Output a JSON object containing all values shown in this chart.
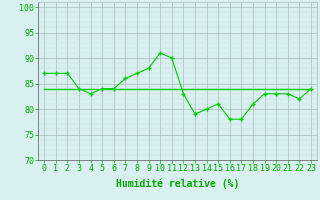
{
  "x": [
    0,
    1,
    2,
    3,
    4,
    5,
    6,
    7,
    8,
    9,
    10,
    11,
    12,
    13,
    14,
    15,
    16,
    17,
    18,
    19,
    20,
    21,
    22,
    23
  ],
  "y_main": [
    87,
    87,
    87,
    84,
    83,
    84,
    84,
    86,
    87,
    88,
    91,
    90,
    83,
    79,
    80,
    81,
    78,
    78,
    81,
    83,
    83,
    83,
    82,
    84
  ],
  "y_avg": [
    84,
    84,
    84,
    84,
    84,
    84,
    84,
    84,
    84,
    84,
    84,
    84,
    84,
    84,
    84,
    84,
    84,
    84,
    84,
    84,
    84,
    84,
    84,
    84
  ],
  "line_color": "#00cc00",
  "avg_color": "#00cc00",
  "bg_color": "#d8f0f0",
  "grid_color_minor": "#ccdddd",
  "grid_color_major": "#aabbbb",
  "xlabel": "Humidité relative (%)",
  "xlabel_color": "#00aa00",
  "xlabel_fontsize": 7,
  "tick_color": "#00aa00",
  "tick_fontsize": 6,
  "ylim": [
    70,
    101
  ],
  "yticks": [
    70,
    75,
    80,
    85,
    90,
    95,
    100
  ],
  "xlim": [
    -0.5,
    23.5
  ],
  "marker_size": 2.5,
  "linewidth": 0.8,
  "avg_linewidth": 1.0
}
